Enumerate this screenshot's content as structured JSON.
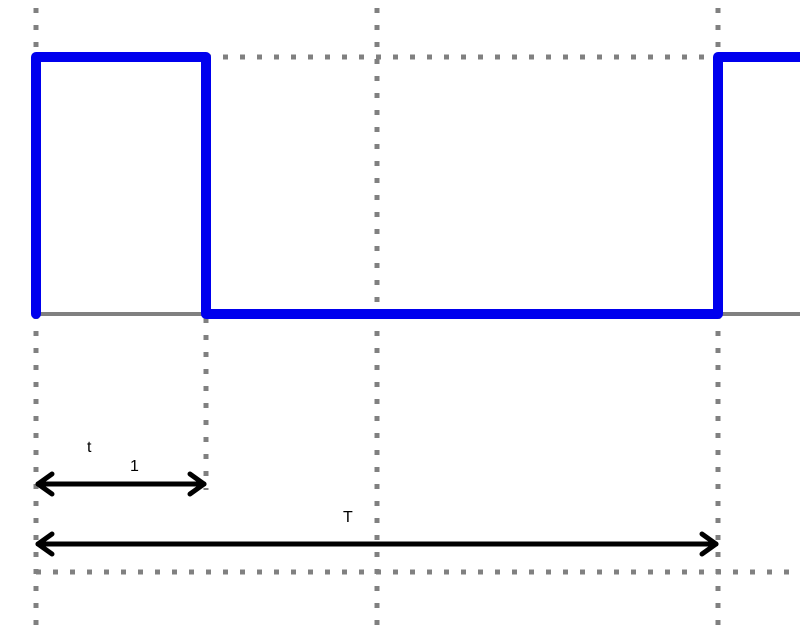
{
  "labels": {
    "t": "t",
    "sub": "1",
    "T": "T"
  },
  "colors": {
    "wave": "#0000ee",
    "grid": "#808080",
    "baseline": "#808080",
    "arrow": "#000000"
  }
}
